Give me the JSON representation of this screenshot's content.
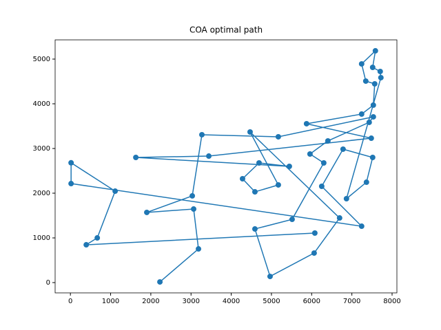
{
  "chart_data": {
    "type": "line",
    "title": "COA optimal path",
    "x": [
      2226,
      3185,
      3065,
      1900,
      3031,
      3270,
      5171,
      7534,
      7431,
      6404,
      5959,
      6301,
      5514,
      4589,
      4966,
      6062,
      6695,
      4469,
      5171,
      4589,
      4281,
      4692,
      5445,
      1627,
      3442,
      7483,
      5873,
      7243,
      7534,
      7568,
      7346,
      7243,
      7585,
      7517,
      7705,
      7722,
      6866,
      7363,
      7517,
      6781,
      6250,
      7243,
      17,
      17,
      1113,
      668,
      394,
      6079
    ],
    "series": [
      {
        "color": "#1f77b4",
        "values": [
          15,
          754,
          1646,
          1570,
          1940,
          3308,
          3262,
          3708,
          3585,
          3170,
          2877,
          2677,
          1415,
          1200,
          138,
          661,
          1446,
          3369,
          2185,
          2030,
          2323,
          2677,
          2600,
          2800,
          2830,
          3230,
          3554,
          3770,
          3970,
          4446,
          4508,
          4892,
          5185,
          4815,
          4723,
          4585,
          1877,
          2246,
          2800,
          2985,
          2154,
          1261,
          2215,
          2680,
          2046,
          1000,
          846,
          1108
        ]
      }
    ],
    "xlim": [
      -380,
      8120
    ],
    "ylim": [
      -230,
      5430
    ],
    "xticks": [
      0,
      1000,
      2000,
      3000,
      4000,
      5000,
      6000,
      7000,
      8000
    ],
    "yticks": [
      0,
      1000,
      2000,
      3000,
      4000,
      5000
    ],
    "markers": true,
    "grid": false
  }
}
